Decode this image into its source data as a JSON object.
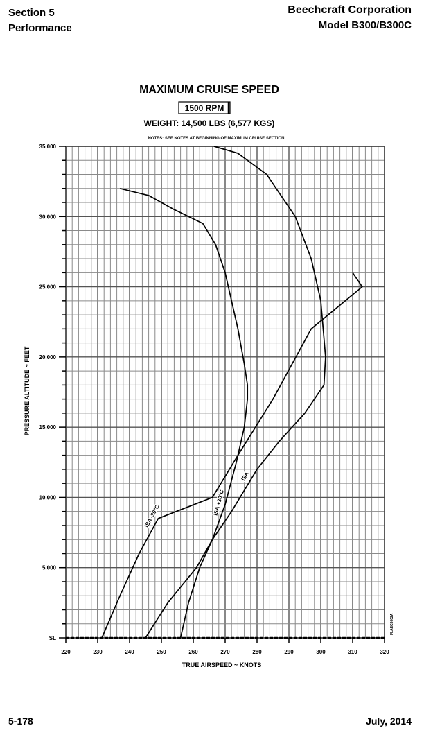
{
  "header": {
    "section": "Section 5",
    "section_name": "Performance",
    "company": "Beechcraft Corporation",
    "model": "Model B300/B300C"
  },
  "footer": {
    "page_number": "5-178",
    "date": "July, 2014"
  },
  "chart_data": {
    "type": "line",
    "title": "MAXIMUM CRUISE SPEED",
    "subtitle_boxed": "1500 RPM",
    "weight": "WEIGHT: 14,500 LBS (6,577 KGS)",
    "notes": "NOTES:  SEE NOTES AT BEGINNING OF MAXIMUM CRUISE SECTION",
    "xlabel": "TRUE AIRSPEED ~ KNOTS",
    "ylabel": "PRESSURE ALTITUDE ~ FEET",
    "xlim": [
      220,
      320
    ],
    "ylim": [
      0,
      35000
    ],
    "x_ticks": [
      "220",
      "230",
      "240",
      "250",
      "260",
      "270",
      "280",
      "290",
      "300",
      "310",
      "320"
    ],
    "y_ticks": [
      "SL",
      "5,000",
      "10,000",
      "15,000",
      "20,000",
      "25,000",
      "30,000",
      "35,000"
    ],
    "grid": true,
    "figure_code": "FLAEC8002A",
    "series": [
      {
        "name": "ISA -30°C",
        "points": [
          [
            231.3,
            0
          ],
          [
            237,
            3000
          ],
          [
            243,
            6000
          ],
          [
            249,
            8500
          ],
          [
            266,
            10000
          ],
          [
            274,
            13000
          ],
          [
            285,
            17000
          ],
          [
            297,
            22000
          ],
          [
            313,
            25000
          ],
          [
            310,
            26000
          ]
        ]
      },
      {
        "name": "ISA",
        "points": [
          [
            245,
            0
          ],
          [
            252,
            2500
          ],
          [
            261,
            5000
          ],
          [
            266,
            7000
          ],
          [
            272,
            9000
          ],
          [
            280,
            12000
          ],
          [
            287,
            14000
          ],
          [
            291,
            15000
          ],
          [
            295,
            16000
          ],
          [
            301,
            18000
          ],
          [
            301.5,
            20000
          ],
          [
            300,
            24000
          ],
          [
            297,
            27000
          ],
          [
            292,
            30000
          ],
          [
            283,
            33000
          ],
          [
            274,
            34500
          ],
          [
            266.5,
            35000
          ]
        ]
      },
      {
        "name": "ISA +30°C",
        "points": [
          [
            256,
            0
          ],
          [
            258.5,
            2500
          ],
          [
            262,
            5000
          ],
          [
            266,
            7000
          ],
          [
            270,
            9500
          ],
          [
            273.5,
            12500
          ],
          [
            276,
            15000
          ],
          [
            277,
            17000
          ],
          [
            277,
            18000
          ],
          [
            276,
            19500
          ],
          [
            274,
            22000
          ],
          [
            272,
            24000
          ],
          [
            270,
            26000
          ],
          [
            267,
            28000
          ],
          [
            263,
            29500
          ],
          [
            254,
            30500
          ],
          [
            246,
            31500
          ],
          [
            237,
            32000
          ]
        ]
      }
    ]
  }
}
